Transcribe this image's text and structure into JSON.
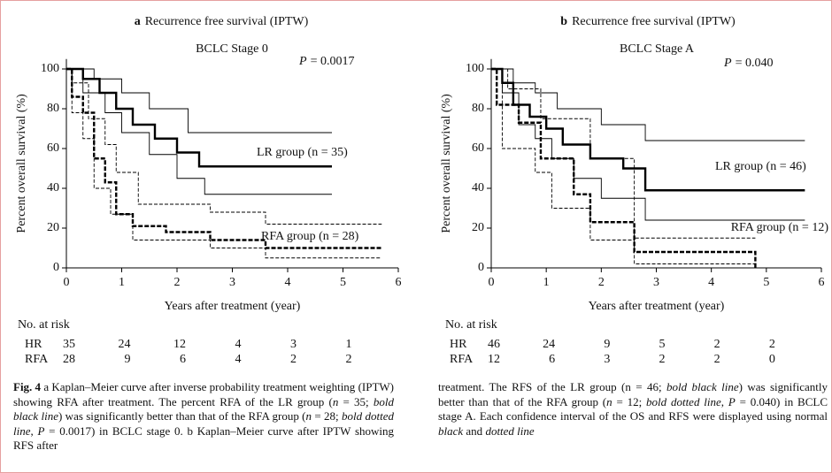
{
  "chart_data": [
    {
      "type": "survival",
      "label": "a",
      "title": "Recurrence free survival (IPTW)",
      "subtitle": "BCLC Stage 0",
      "p_symbol": "P",
      "p_text": "= 0.0017",
      "xlabel": "Years after treatment (year)",
      "ylabel": "Percent overall survival (%)",
      "xlim": [
        0,
        6
      ],
      "xticks": [
        0,
        1,
        2,
        3,
        4,
        5,
        6
      ],
      "ylim": [
        0,
        105
      ],
      "yticks": [
        0,
        20,
        40,
        60,
        80,
        100
      ],
      "series": [
        {
          "name": "LR group (n = 35)",
          "color": "#000000",
          "bold": true,
          "dashed": false,
          "x": [
            0,
            0.3,
            0.3,
            0.6,
            0.6,
            0.9,
            0.9,
            1.2,
            1.2,
            1.6,
            1.6,
            2.0,
            2.0,
            2.4,
            2.4,
            4.8
          ],
          "values": [
            100,
            100,
            95,
            95,
            88,
            88,
            80,
            80,
            72,
            72,
            65,
            65,
            58,
            58,
            51,
            51
          ]
        },
        {
          "color": "#000000",
          "bold": false,
          "dashed": false,
          "x": [
            0,
            0.5,
            0.5,
            1.0,
            1.0,
            1.5,
            1.5,
            2.2,
            2.2,
            4.8
          ],
          "values": [
            100,
            100,
            95,
            95,
            88,
            88,
            80,
            80,
            68,
            68
          ]
        },
        {
          "color": "#000000",
          "bold": false,
          "dashed": false,
          "x": [
            0,
            0.3,
            0.3,
            0.7,
            0.7,
            1.0,
            1.0,
            1.5,
            1.5,
            2.0,
            2.0,
            2.5,
            2.5,
            4.8
          ],
          "values": [
            100,
            100,
            88,
            88,
            78,
            78,
            68,
            68,
            57,
            57,
            45,
            45,
            37,
            37
          ]
        },
        {
          "name": "RFA group (n = 28)",
          "color": "#000000",
          "bold": true,
          "dashed": true,
          "x": [
            0,
            0.1,
            0.1,
            0.3,
            0.3,
            0.5,
            0.5,
            0.7,
            0.7,
            0.9,
            0.9,
            1.2,
            1.2,
            1.8,
            1.8,
            2.6,
            2.6,
            3.6,
            3.6,
            5.7
          ],
          "values": [
            100,
            100,
            86,
            86,
            78,
            78,
            55,
            55,
            43,
            43,
            27,
            27,
            21,
            21,
            18,
            18,
            14,
            14,
            10,
            10
          ]
        },
        {
          "color": "#000000",
          "bold": false,
          "dashed": true,
          "x": [
            0,
            0.1,
            0.1,
            0.4,
            0.4,
            0.7,
            0.7,
            0.9,
            0.9,
            1.3,
            1.3,
            2.6,
            2.6,
            3.6,
            3.6,
            5.7
          ],
          "values": [
            100,
            100,
            93,
            93,
            75,
            75,
            62,
            62,
            48,
            48,
            32,
            32,
            28,
            28,
            22,
            22
          ]
        },
        {
          "color": "#000000",
          "bold": false,
          "dashed": true,
          "x": [
            0,
            0.1,
            0.1,
            0.3,
            0.3,
            0.5,
            0.5,
            0.8,
            0.8,
            1.2,
            1.2,
            2.6,
            2.6,
            3.6,
            3.6,
            5.7
          ],
          "values": [
            100,
            100,
            78,
            78,
            65,
            65,
            40,
            40,
            27,
            27,
            14,
            14,
            10,
            10,
            5,
            5
          ]
        }
      ],
      "risk_table": {
        "title": "No. at risk",
        "rows": [
          {
            "label": "HR",
            "values": [
              35,
              24,
              12,
              4,
              3,
              1
            ]
          },
          {
            "label": "RFA",
            "values": [
              28,
              9,
              6,
              4,
              2,
              2
            ]
          }
        ]
      }
    },
    {
      "type": "survival",
      "label": "b",
      "title": "Recurrence free survival (IPTW)",
      "subtitle": "BCLC Stage A",
      "p_symbol": "P",
      "p_text": "= 0.040",
      "xlabel": "Years after treatment (year)",
      "ylabel": "Percent overall survival (%)",
      "xlim": [
        0,
        6
      ],
      "xticks": [
        0,
        1,
        2,
        3,
        4,
        5,
        6
      ],
      "ylim": [
        0,
        105
      ],
      "yticks": [
        0,
        20,
        40,
        60,
        80,
        100
      ],
      "series": [
        {
          "name": "LR group (n = 46)",
          "color": "#000000",
          "bold": true,
          "dashed": false,
          "x": [
            0,
            0.2,
            0.2,
            0.4,
            0.4,
            0.7,
            0.7,
            1.0,
            1.0,
            1.3,
            1.3,
            1.8,
            1.8,
            2.4,
            2.4,
            2.8,
            2.8,
            5.7
          ],
          "values": [
            100,
            100,
            93,
            93,
            82,
            82,
            76,
            76,
            70,
            70,
            62,
            62,
            55,
            55,
            50,
            50,
            39,
            39
          ]
        },
        {
          "color": "#000000",
          "bold": false,
          "dashed": false,
          "x": [
            0,
            0.4,
            0.4,
            0.8,
            0.8,
            1.2,
            1.2,
            2.0,
            2.0,
            2.8,
            2.8,
            5.7
          ],
          "values": [
            100,
            100,
            93,
            93,
            88,
            88,
            80,
            80,
            72,
            72,
            64,
            64
          ]
        },
        {
          "color": "#000000",
          "bold": false,
          "dashed": false,
          "x": [
            0,
            0.2,
            0.2,
            0.5,
            0.5,
            0.8,
            0.8,
            1.1,
            1.1,
            1.5,
            1.5,
            2.0,
            2.0,
            2.8,
            2.8,
            5.7
          ],
          "values": [
            100,
            100,
            88,
            88,
            72,
            72,
            65,
            65,
            55,
            55,
            45,
            45,
            35,
            35,
            24,
            24
          ]
        },
        {
          "name": "RFA group (n = 12)",
          "color": "#000000",
          "bold": true,
          "dashed": true,
          "x": [
            0,
            0.1,
            0.1,
            0.5,
            0.5,
            0.9,
            0.9,
            1.5,
            1.5,
            1.8,
            1.8,
            2.6,
            2.6,
            4.8,
            4.8
          ],
          "values": [
            100,
            100,
            82,
            82,
            73,
            73,
            55,
            55,
            37,
            37,
            23,
            23,
            8,
            8,
            0
          ]
        },
        {
          "color": "#000000",
          "bold": false,
          "dashed": true,
          "x": [
            0,
            0.3,
            0.3,
            0.9,
            0.9,
            1.8,
            1.8,
            2.6,
            2.6,
            4.8
          ],
          "values": [
            100,
            100,
            90,
            90,
            75,
            75,
            55,
            55,
            15,
            15
          ]
        },
        {
          "color": "#000000",
          "bold": false,
          "dashed": true,
          "x": [
            0,
            0.2,
            0.2,
            0.8,
            0.8,
            1.1,
            1.1,
            1.8,
            1.8,
            2.6,
            2.6,
            4.8
          ],
          "values": [
            100,
            100,
            60,
            60,
            48,
            48,
            30,
            30,
            14,
            14,
            2,
            2
          ]
        }
      ],
      "risk_table": {
        "title": "No. at risk",
        "rows": [
          {
            "label": "HR",
            "values": [
              46,
              24,
              9,
              5,
              2,
              2
            ]
          },
          {
            "label": "RFA",
            "values": [
              12,
              6,
              3,
              2,
              2,
              0
            ]
          }
        ]
      }
    }
  ],
  "caption": {
    "left": [
      {
        "text": "Fig. 4",
        "style": "bold"
      },
      {
        "text": " a Kaplan–Meier curve after inverse probability treatment weighting (IPTW) showing RFA after treatment. The percent RFA of the LR group (",
        "style": "normal"
      },
      {
        "text": "n",
        "style": "italic"
      },
      {
        "text": " = 35; ",
        "style": "normal"
      },
      {
        "text": "bold black line",
        "style": "italic"
      },
      {
        "text": ") was significantly better than that of the RFA group (",
        "style": "normal"
      },
      {
        "text": "n",
        "style": "italic"
      },
      {
        "text": " = 28; ",
        "style": "normal"
      },
      {
        "text": "bold dotted line",
        "style": "italic"
      },
      {
        "text": ", ",
        "style": "normal"
      },
      {
        "text": "P",
        "style": "italic"
      },
      {
        "text": " = 0.0017) in BCLC stage 0. b Kaplan–Meier curve after IPTW showing RFS after",
        "style": "normal"
      }
    ],
    "right": [
      {
        "text": "treatment. The RFS of the LR group (n = 46; ",
        "style": "normal"
      },
      {
        "text": "bold black line",
        "style": "italic"
      },
      {
        "text": ") was significantly better than that of the RFA group (",
        "style": "normal"
      },
      {
        "text": "n",
        "style": "italic"
      },
      {
        "text": " = 12; ",
        "style": "normal"
      },
      {
        "text": "bold dotted line",
        "style": "italic"
      },
      {
        "text": ", ",
        "style": "normal"
      },
      {
        "text": "P",
        "style": "italic"
      },
      {
        "text": " = 0.040) in BCLC stage A. Each confidence interval of the OS and RFS were displayed using normal ",
        "style": "normal"
      },
      {
        "text": "black",
        "style": "italic"
      },
      {
        "text": " and ",
        "style": "normal"
      },
      {
        "text": "dotted line",
        "style": "italic"
      }
    ]
  }
}
